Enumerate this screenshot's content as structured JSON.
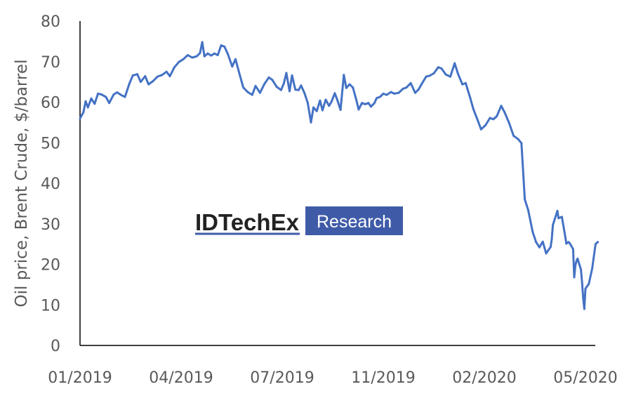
{
  "chart_data": {
    "type": "line",
    "title": "",
    "xlabel": "",
    "ylabel": "Oil price, Brent Crude, $/barrel",
    "ylim": [
      0,
      80
    ],
    "y_ticks": [
      "0",
      "10",
      "20",
      "30",
      "40",
      "50",
      "60",
      "70",
      "80"
    ],
    "x_ticks": [
      "01/2019",
      "04/2019",
      "07/2019",
      "11/2019",
      "02/2020",
      "05/2020"
    ],
    "grid": false,
    "series": [
      {
        "color": "#4472C4",
        "points": [
          [
            "2019-01-01",
            56.0
          ],
          [
            "2019-01-04",
            57.5
          ],
          [
            "2019-01-06",
            60.2
          ],
          [
            "2019-01-08",
            58.7
          ],
          [
            "2019-01-11",
            60.9
          ],
          [
            "2019-01-14",
            59.6
          ],
          [
            "2019-01-17",
            62.1
          ],
          [
            "2019-01-20",
            61.9
          ],
          [
            "2019-01-24",
            61.3
          ],
          [
            "2019-01-27",
            59.8
          ],
          [
            "2019-01-31",
            61.9
          ],
          [
            "2019-02-03",
            62.4
          ],
          [
            "2019-02-07",
            61.7
          ],
          [
            "2019-02-10",
            61.3
          ],
          [
            "2019-02-14",
            64.6
          ],
          [
            "2019-02-17",
            66.6
          ],
          [
            "2019-02-21",
            66.9
          ],
          [
            "2019-02-24",
            65.0
          ],
          [
            "2019-02-28",
            66.4
          ],
          [
            "2019-03-03",
            64.4
          ],
          [
            "2019-03-07",
            65.2
          ],
          [
            "2019-03-11",
            66.3
          ],
          [
            "2019-03-15",
            66.7
          ],
          [
            "2019-03-19",
            67.5
          ],
          [
            "2019-03-22",
            66.4
          ],
          [
            "2019-03-26",
            68.6
          ],
          [
            "2019-03-30",
            69.9
          ],
          [
            "2019-04-03",
            70.6
          ],
          [
            "2019-04-07",
            71.6
          ],
          [
            "2019-04-11",
            71.0
          ],
          [
            "2019-04-15",
            71.3
          ],
          [
            "2019-04-18",
            72.1
          ],
          [
            "2019-04-20",
            74.8
          ],
          [
            "2019-04-22",
            71.3
          ],
          [
            "2019-04-25",
            72.0
          ],
          [
            "2019-04-28",
            71.5
          ],
          [
            "2019-05-01",
            72.0
          ],
          [
            "2019-05-04",
            71.6
          ],
          [
            "2019-05-07",
            74.0
          ],
          [
            "2019-05-10",
            73.7
          ],
          [
            "2019-05-13",
            71.9
          ],
          [
            "2019-05-17",
            68.8
          ],
          [
            "2019-05-20",
            70.6
          ],
          [
            "2019-05-24",
            66.5
          ],
          [
            "2019-05-27",
            63.6
          ],
          [
            "2019-05-31",
            62.5
          ],
          [
            "2019-06-04",
            61.8
          ],
          [
            "2019-06-07",
            64.0
          ],
          [
            "2019-06-11",
            62.3
          ],
          [
            "2019-06-15",
            64.5
          ],
          [
            "2019-06-19",
            66.1
          ],
          [
            "2019-06-22",
            65.5
          ],
          [
            "2019-06-26",
            63.8
          ],
          [
            "2019-06-30",
            63.0
          ],
          [
            "2019-07-03",
            64.6
          ],
          [
            "2019-07-06",
            67.2
          ],
          [
            "2019-07-10",
            62.7
          ],
          [
            "2019-07-13",
            66.6
          ],
          [
            "2019-07-17",
            63.1
          ],
          [
            "2019-07-21",
            63.0
          ],
          [
            "2019-07-24",
            64.1
          ],
          [
            "2019-07-28",
            62.3
          ],
          [
            "2019-08-01",
            59.9
          ],
          [
            "2019-08-05",
            55.0
          ],
          [
            "2019-08-08",
            58.7
          ],
          [
            "2019-08-12",
            57.8
          ],
          [
            "2019-08-16",
            60.4
          ],
          [
            "2019-08-19",
            58.0
          ],
          [
            "2019-08-23",
            60.6
          ],
          [
            "2019-08-27",
            59.1
          ],
          [
            "2019-08-30",
            60.1
          ],
          [
            "2019-09-03",
            62.2
          ],
          [
            "2019-09-06",
            60.6
          ],
          [
            "2019-09-10",
            58.1
          ],
          [
            "2019-09-14",
            66.7
          ],
          [
            "2019-09-17",
            63.5
          ],
          [
            "2019-09-21",
            64.4
          ],
          [
            "2019-09-25",
            63.6
          ],
          [
            "2019-09-29",
            60.7
          ],
          [
            "2019-10-02",
            58.2
          ],
          [
            "2019-10-06",
            59.8
          ],
          [
            "2019-10-10",
            59.5
          ],
          [
            "2019-10-14",
            59.8
          ],
          [
            "2019-10-17",
            58.9
          ],
          [
            "2019-10-21",
            59.7
          ],
          [
            "2019-10-24",
            61.0
          ],
          [
            "2019-10-28",
            61.3
          ],
          [
            "2019-11-01",
            62.1
          ],
          [
            "2019-11-04",
            61.8
          ],
          [
            "2019-11-08",
            62.5
          ],
          [
            "2019-11-11",
            62.1
          ],
          [
            "2019-11-15",
            62.3
          ],
          [
            "2019-11-19",
            63.3
          ],
          [
            "2019-11-22",
            63.6
          ],
          [
            "2019-11-26",
            64.7
          ],
          [
            "2019-11-30",
            62.3
          ],
          [
            "2019-12-03",
            63.1
          ],
          [
            "2019-12-06",
            64.5
          ],
          [
            "2019-12-10",
            66.3
          ],
          [
            "2019-12-13",
            66.5
          ],
          [
            "2019-12-17",
            67.1
          ],
          [
            "2019-12-21",
            68.6
          ],
          [
            "2019-12-24",
            68.3
          ],
          [
            "2019-12-28",
            66.8
          ],
          [
            "2020-01-01",
            66.3
          ],
          [
            "2020-01-05",
            69.6
          ],
          [
            "2020-01-08",
            67.0
          ],
          [
            "2020-01-12",
            64.4
          ],
          [
            "2020-01-15",
            64.7
          ],
          [
            "2020-01-19",
            61.1
          ],
          [
            "2020-01-22",
            58.3
          ],
          [
            "2020-01-26",
            55.5
          ],
          [
            "2020-01-29",
            53.3
          ],
          [
            "2020-02-02",
            54.3
          ],
          [
            "2020-02-06",
            56.1
          ],
          [
            "2020-02-09",
            55.8
          ],
          [
            "2020-02-12",
            56.5
          ],
          [
            "2020-02-16",
            59.1
          ],
          [
            "2020-02-19",
            57.5
          ],
          [
            "2020-02-23",
            54.9
          ],
          [
            "2020-02-27",
            51.7
          ],
          [
            "2020-03-02",
            50.9
          ],
          [
            "2020-03-05",
            49.9
          ],
          [
            "2020-03-08",
            36.0
          ],
          [
            "2020-03-11",
            33.4
          ],
          [
            "2020-03-15",
            28.0
          ],
          [
            "2020-03-18",
            25.5
          ],
          [
            "2020-03-21",
            24.2
          ],
          [
            "2020-03-24",
            25.6
          ],
          [
            "2020-03-27",
            22.7
          ],
          [
            "2020-03-31",
            24.3
          ],
          [
            "2020-04-01",
            26.2
          ],
          [
            "2020-04-02",
            29.7
          ],
          [
            "2020-04-06",
            33.2
          ],
          [
            "2020-04-07",
            31.4
          ],
          [
            "2020-04-10",
            31.7
          ],
          [
            "2020-04-13",
            26.9
          ],
          [
            "2020-04-14",
            25.1
          ],
          [
            "2020-04-16",
            25.5
          ],
          [
            "2020-04-17",
            25.2
          ],
          [
            "2020-04-20",
            23.8
          ],
          [
            "2020-04-21",
            16.8
          ],
          [
            "2020-04-22",
            19.7
          ],
          [
            "2020-04-23",
            20.8
          ],
          [
            "2020-04-24",
            21.4
          ],
          [
            "2020-04-27",
            18.7
          ],
          [
            "2020-04-28",
            15.5
          ],
          [
            "2020-04-29",
            11.6
          ],
          [
            "2020-04-30",
            9.0
          ],
          [
            "2020-05-01",
            14.0
          ],
          [
            "2020-05-04",
            15.2
          ],
          [
            "2020-05-07",
            19.0
          ],
          [
            "2020-05-10",
            25.0
          ],
          [
            "2020-05-12",
            25.5
          ]
        ]
      }
    ]
  },
  "logo": {
    "name": "IDTechEx",
    "tag": "Research"
  }
}
